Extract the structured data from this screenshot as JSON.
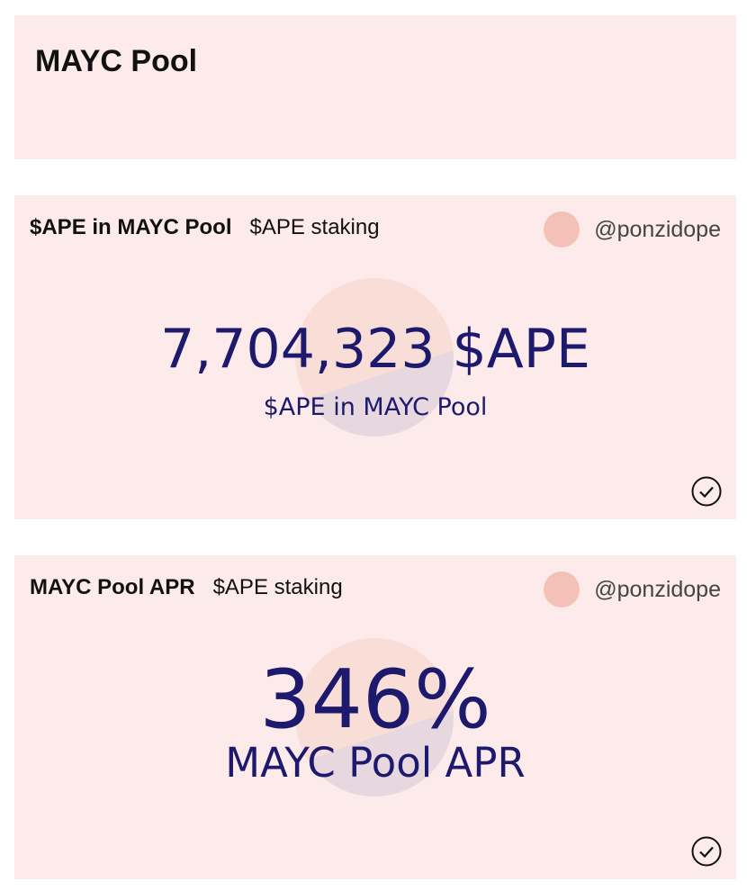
{
  "page": {
    "title": "MAYC Pool"
  },
  "cards": [
    {
      "title": "$APE in MAYC Pool",
      "category": "$APE staking",
      "author": "@ponzidope",
      "value": "7,704,323 $APE",
      "label": "$APE in MAYC Pool"
    },
    {
      "title": "MAYC Pool APR",
      "category": "$APE staking",
      "author": "@ponzidope",
      "value": "346%",
      "label": "MAYC Pool APR"
    }
  ],
  "colors": {
    "card_bg": "#fcebea",
    "value_text": "#1d1a6e",
    "avatar": "#f5c0b8"
  }
}
